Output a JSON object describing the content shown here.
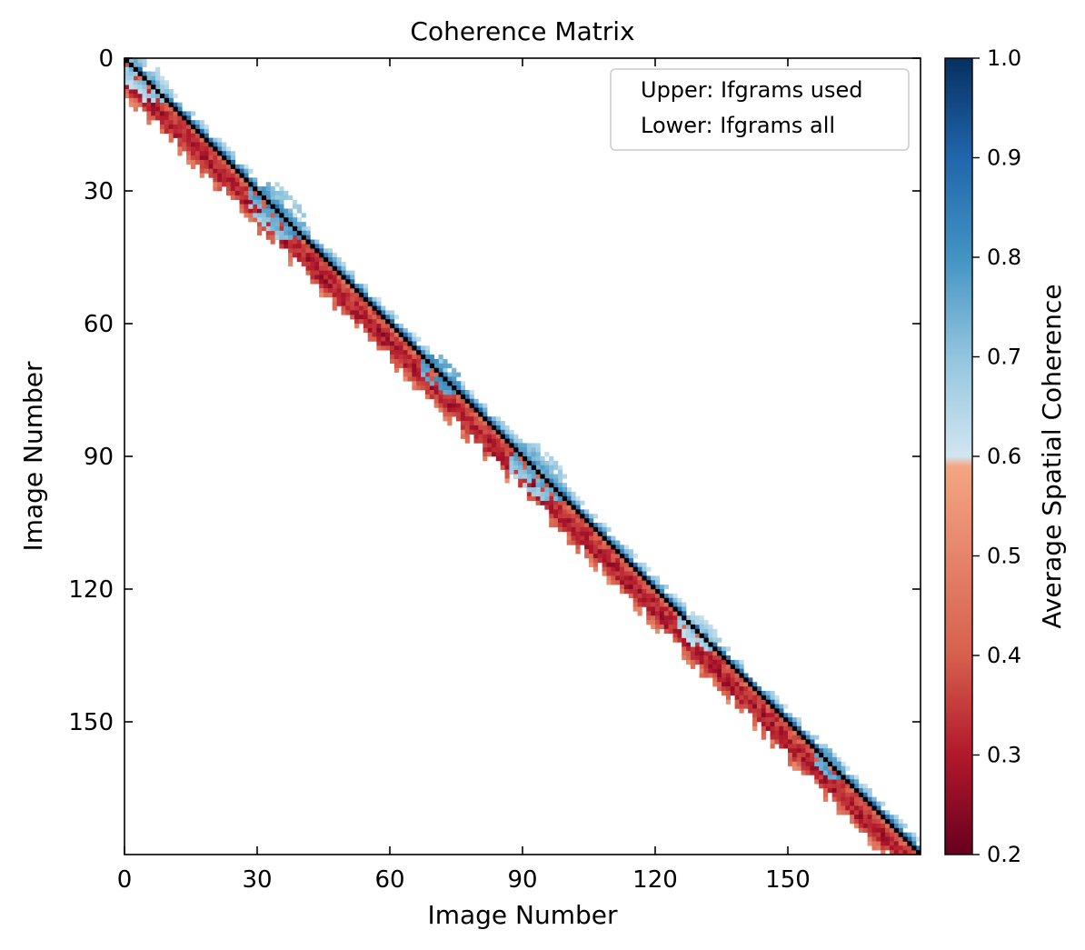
{
  "chart_data": {
    "type": "heatmap",
    "title": "Coherence Matrix",
    "xlabel": "Image Number",
    "ylabel": "Image Number",
    "n_images": 180,
    "xlim": [
      0,
      180
    ],
    "ylim": [
      180,
      0
    ],
    "x_ticks": [
      0,
      30,
      60,
      90,
      120,
      150
    ],
    "y_ticks": [
      0,
      30,
      60,
      90,
      120,
      150
    ],
    "legend": {
      "placement": "upper right",
      "entries": [
        "Upper: Ifgrams used",
        "Lower: Ifgrams all"
      ]
    },
    "colorbar": {
      "label": "Average Spatial Coherence",
      "vmin": 0.2,
      "vmax": 1.0,
      "ticks": [
        0.2,
        0.3,
        0.4,
        0.5,
        0.6,
        0.7,
        0.8,
        0.9,
        1.0
      ],
      "cmap": "RdBu-truncated",
      "color_stops": [
        {
          "v": 0.2,
          "color": "#67001f"
        },
        {
          "v": 0.3,
          "color": "#b2182b"
        },
        {
          "v": 0.4,
          "color": "#d6604d"
        },
        {
          "v": 0.59,
          "color": "#f4a582"
        },
        {
          "v": 0.6,
          "color": "#d1e5f0"
        },
        {
          "v": 0.7,
          "color": "#92c5de"
        },
        {
          "v": 0.8,
          "color": "#4393c3"
        },
        {
          "v": 0.9,
          "color": "#2166ac"
        },
        {
          "v": 1.0,
          "color": "#053061"
        }
      ]
    },
    "diagonal_color": "#000000",
    "lower_band": {
      "description_free": true,
      "max_offset": 10,
      "coherence_by_offset": [
        1.0,
        0.4,
        0.36,
        0.33,
        0.3,
        0.3,
        0.32,
        0.38,
        0.44,
        0.48,
        0.52
      ]
    },
    "upper_band": {
      "max_offset": 3,
      "coherence_by_offset": [
        1.0,
        0.86,
        0.72,
        0.64
      ]
    },
    "high_coherence_clusters": [
      {
        "center": 4,
        "radius": 5,
        "peak": 0.74
      },
      {
        "center": 34,
        "radius": 6,
        "peak": 0.82
      },
      {
        "center": 71,
        "radius": 4,
        "peak": 0.84
      },
      {
        "center": 93,
        "radius": 6,
        "peak": 0.8
      },
      {
        "center": 129,
        "radius": 4,
        "peak": 0.72
      },
      {
        "center": 159,
        "radius": 3,
        "peak": 0.82
      }
    ]
  }
}
